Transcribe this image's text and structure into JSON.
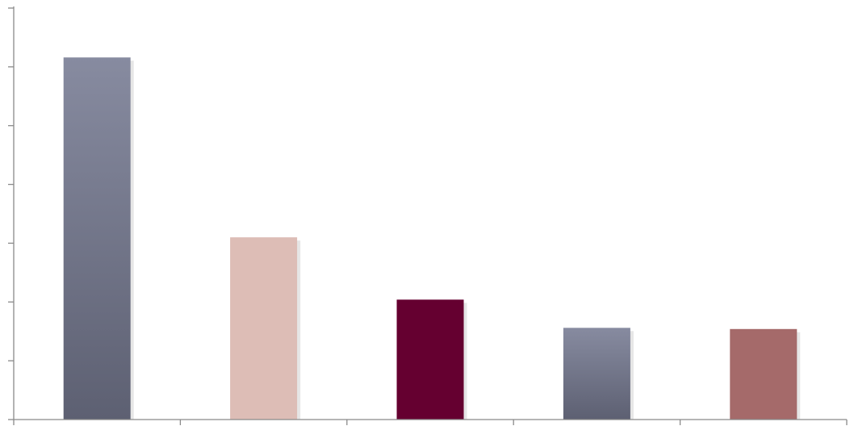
{
  "chart_data": {
    "type": "bar",
    "categories": [
      "",
      "",
      "",
      "",
      ""
    ],
    "values": [
      6.16,
      3.1,
      2.04,
      1.56,
      1.54
    ],
    "ylim": [
      0,
      7
    ],
    "y_tick_step": 1,
    "grid": false,
    "legend": "none",
    "colors": [
      {
        "top": "#878BA0",
        "bottom": "#5D6072"
      },
      {
        "top": "#DDBDB6",
        "bottom": "#DDBDB6"
      },
      {
        "top": "#650030",
        "bottom": "#650030"
      },
      {
        "top": "#878BA0",
        "bottom": "#5D6072"
      },
      {
        "top": "#A56A6A",
        "bottom": "#A56A6A"
      }
    ],
    "shadow_color": "#E6E6E6",
    "axis_color": "#8A8A8A"
  }
}
